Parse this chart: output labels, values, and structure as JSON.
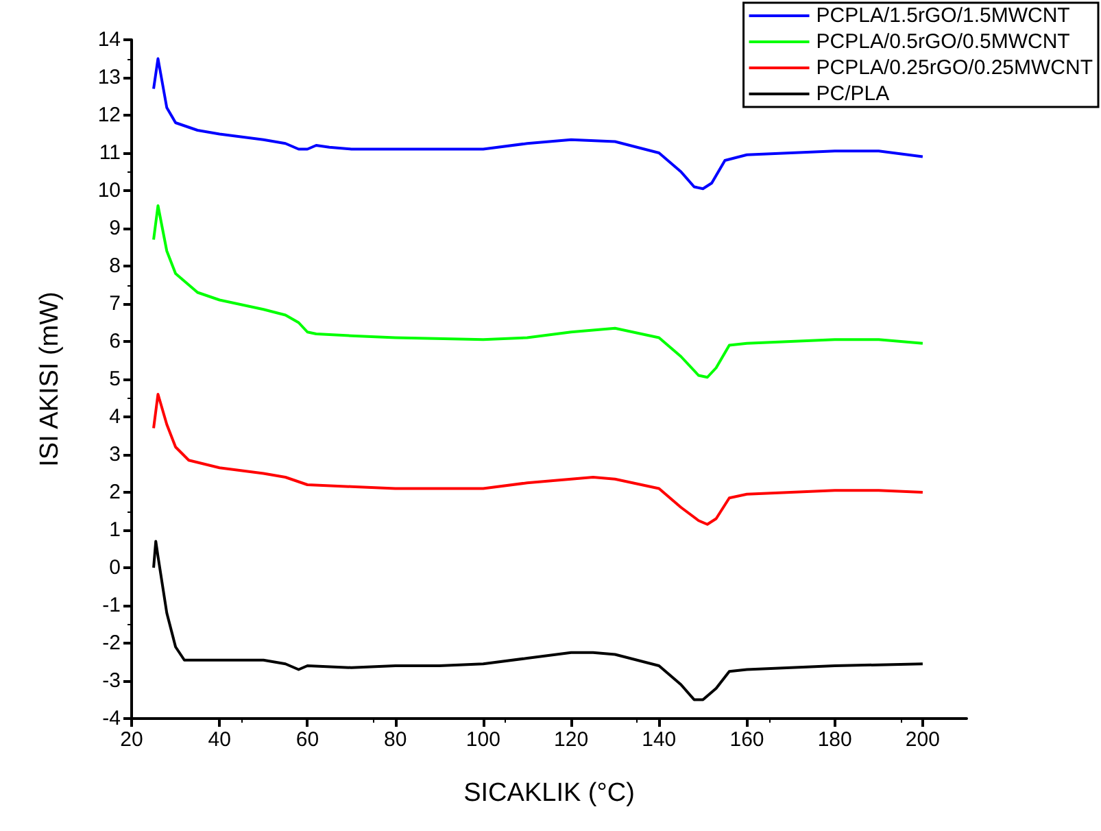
{
  "chart_data": {
    "type": "line",
    "xlabel": "SICAKLIK (°C)",
    "ylabel": "ISI AKISI (mW)",
    "xlim": [
      20,
      210
    ],
    "xticks": [
      20,
      40,
      60,
      80,
      100,
      120,
      140,
      160,
      180,
      200
    ],
    "ylim": [
      -4,
      14
    ],
    "yticks": [
      -4,
      -3,
      -2,
      -1,
      0,
      1,
      2,
      3,
      4,
      5,
      6,
      7,
      8,
      9,
      10,
      11,
      12,
      13,
      14
    ],
    "grid": false,
    "legend": "top right",
    "marker": "none",
    "line_style": "solid",
    "series": [
      {
        "name": "PCPLA/1.5rGO/1.5MWCNT",
        "color": "#0000ff",
        "x": [
          25,
          26,
          28,
          30,
          35,
          40,
          50,
          55,
          58,
          60,
          62,
          65,
          70,
          80,
          100,
          110,
          120,
          130,
          140,
          145,
          148,
          150,
          152,
          155,
          160,
          170,
          180,
          190,
          200
        ],
        "values": [
          12.7,
          13.5,
          12.2,
          11.8,
          11.6,
          11.5,
          11.35,
          11.25,
          11.1,
          11.1,
          11.2,
          11.15,
          11.1,
          11.1,
          11.1,
          11.25,
          11.35,
          11.3,
          11.0,
          10.5,
          10.1,
          10.05,
          10.2,
          10.8,
          10.95,
          11.0,
          11.05,
          11.05,
          10.9
        ]
      },
      {
        "name": "PCPLA/0.5rGO/0.5MWCNT",
        "color": "#00ff00",
        "x": [
          25,
          26,
          28,
          30,
          35,
          40,
          50,
          55,
          58,
          60,
          62,
          70,
          80,
          100,
          110,
          120,
          130,
          140,
          145,
          149,
          151,
          153,
          156,
          160,
          170,
          180,
          190,
          200
        ],
        "values": [
          8.7,
          9.6,
          8.4,
          7.8,
          7.3,
          7.1,
          6.85,
          6.7,
          6.5,
          6.25,
          6.2,
          6.15,
          6.1,
          6.05,
          6.1,
          6.25,
          6.35,
          6.1,
          5.6,
          5.1,
          5.05,
          5.3,
          5.9,
          5.95,
          6.0,
          6.05,
          6.05,
          5.95
        ]
      },
      {
        "name": "PCPLA/0.25rGO/0.25MWCNT",
        "color": "#ff0000",
        "x": [
          25,
          26,
          28,
          30,
          33,
          40,
          50,
          55,
          60,
          70,
          80,
          100,
          110,
          120,
          125,
          130,
          140,
          145,
          149,
          151,
          153,
          156,
          160,
          170,
          180,
          190,
          200
        ],
        "values": [
          3.7,
          4.6,
          3.8,
          3.2,
          2.85,
          2.65,
          2.5,
          2.4,
          2.2,
          2.15,
          2.1,
          2.1,
          2.25,
          2.35,
          2.4,
          2.35,
          2.1,
          1.6,
          1.25,
          1.15,
          1.3,
          1.85,
          1.95,
          2.0,
          2.05,
          2.05,
          2.0
        ]
      },
      {
        "name": "PC/PLA",
        "color": "#000000",
        "x": [
          25,
          25.5,
          26,
          28,
          30,
          32,
          40,
          50,
          55,
          58,
          60,
          70,
          80,
          90,
          100,
          110,
          120,
          125,
          130,
          140,
          145,
          148,
          150,
          153,
          156,
          160,
          170,
          180,
          200
        ],
        "values": [
          0,
          0.7,
          0.3,
          -1.2,
          -2.1,
          -2.45,
          -2.45,
          -2.45,
          -2.55,
          -2.7,
          -2.6,
          -2.65,
          -2.6,
          -2.6,
          -2.55,
          -2.4,
          -2.25,
          -2.25,
          -2.3,
          -2.6,
          -3.1,
          -3.5,
          -3.5,
          -3.2,
          -2.75,
          -2.7,
          -2.65,
          -2.6,
          -2.55
        ]
      }
    ]
  }
}
